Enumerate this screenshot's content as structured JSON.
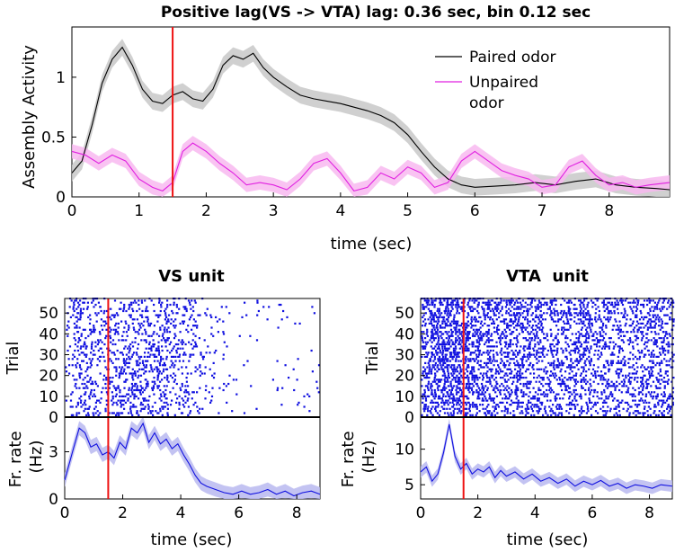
{
  "chart_data": [
    {
      "type": "line",
      "title": "Positive lag(VS -> VTA) lag: 0.36 sec, bin 0.12 sec",
      "xlabel": "time (sec)",
      "ylabel": "Assembly Activity",
      "xlim": [
        0,
        8.9
      ],
      "ylim": [
        0,
        1.42
      ],
      "xticks": [
        "0",
        "1",
        "2",
        "3",
        "4",
        "5",
        "6",
        "7",
        "8"
      ],
      "yticks": [
        "0",
        "0.5",
        "1"
      ],
      "legend_position": "top-right",
      "event_line": 1.5,
      "series": [
        {
          "name": "Paired odor",
          "color": "#000000",
          "band_color": "#c8c8c8",
          "x": [
            0,
            0.15,
            0.3,
            0.45,
            0.6,
            0.75,
            0.9,
            1.05,
            1.2,
            1.35,
            1.5,
            1.65,
            1.8,
            1.95,
            2.1,
            2.25,
            2.4,
            2.55,
            2.7,
            2.85,
            3.0,
            3.2,
            3.4,
            3.6,
            3.8,
            4.0,
            4.2,
            4.4,
            4.6,
            4.8,
            5.0,
            5.2,
            5.4,
            5.6,
            5.8,
            6.0,
            6.3,
            6.6,
            6.9,
            7.2,
            7.5,
            7.8,
            8.1,
            8.4,
            8.7,
            8.9
          ],
          "y": [
            0.2,
            0.3,
            0.6,
            0.95,
            1.15,
            1.25,
            1.1,
            0.9,
            0.8,
            0.78,
            0.85,
            0.88,
            0.82,
            0.8,
            0.9,
            1.1,
            1.18,
            1.15,
            1.2,
            1.08,
            1.0,
            0.92,
            0.85,
            0.82,
            0.8,
            0.78,
            0.75,
            0.72,
            0.68,
            0.62,
            0.52,
            0.38,
            0.25,
            0.15,
            0.1,
            0.08,
            0.09,
            0.1,
            0.12,
            0.1,
            0.13,
            0.15,
            0.1,
            0.08,
            0.07,
            0.06
          ],
          "err": 0.07
        },
        {
          "name": "Unpaired odor",
          "color": "#e020e0",
          "band_color": "#f8b8f0",
          "x": [
            0,
            0.2,
            0.4,
            0.6,
            0.8,
            1.0,
            1.2,
            1.35,
            1.5,
            1.65,
            1.8,
            2.0,
            2.2,
            2.4,
            2.6,
            2.8,
            3.0,
            3.2,
            3.4,
            3.6,
            3.8,
            4.0,
            4.2,
            4.4,
            4.6,
            4.8,
            5.0,
            5.2,
            5.4,
            5.6,
            5.8,
            6.0,
            6.2,
            6.4,
            6.6,
            6.8,
            7.0,
            7.2,
            7.4,
            7.6,
            7.8,
            8.0,
            8.2,
            8.4,
            8.6,
            8.9
          ],
          "y": [
            0.38,
            0.35,
            0.28,
            0.35,
            0.3,
            0.15,
            0.08,
            0.05,
            0.12,
            0.38,
            0.45,
            0.38,
            0.28,
            0.2,
            0.1,
            0.12,
            0.1,
            0.06,
            0.15,
            0.28,
            0.32,
            0.2,
            0.05,
            0.08,
            0.2,
            0.15,
            0.25,
            0.2,
            0.08,
            0.12,
            0.3,
            0.38,
            0.3,
            0.22,
            0.18,
            0.15,
            0.08,
            0.1,
            0.25,
            0.3,
            0.18,
            0.1,
            0.12,
            0.08,
            0.1,
            0.12
          ],
          "err": 0.06
        }
      ]
    },
    {
      "type": "scatter",
      "subtype": "raster",
      "title": "VS unit",
      "ylabel": "Trial",
      "xlim": [
        0,
        8.8
      ],
      "ylim": [
        0,
        57
      ],
      "yticks": [
        "0",
        "10",
        "20",
        "30",
        "40",
        "50"
      ],
      "event_line": 1.5,
      "color": "#1010e0",
      "trials": 57,
      "rate_profile_x": [
        0,
        0.5,
        1,
        1.5,
        2,
        2.5,
        3,
        3.5,
        4,
        4.5,
        5,
        5.5,
        6,
        6.5,
        7,
        7.5,
        8,
        8.8
      ],
      "rate_profile_y": [
        2,
        4.5,
        3.5,
        3,
        4.5,
        4.5,
        4,
        3.8,
        3.5,
        2.2,
        0.8,
        0.5,
        0.4,
        0.4,
        0.5,
        0.4,
        0.3,
        0.4
      ]
    },
    {
      "type": "line",
      "xlabel": "time (sec)",
      "ylabel": "Fr. rate (Hz)",
      "xlim": [
        0,
        8.8
      ],
      "ylim": [
        0,
        5.2
      ],
      "xticks": [
        "0",
        "2",
        "4",
        "6",
        "8"
      ],
      "yticks": [
        "0",
        "3"
      ],
      "event_line": 1.5,
      "series": [
        {
          "color": "#1010e0",
          "band_color": "#b8b8f0",
          "x": [
            0,
            0.3,
            0.5,
            0.7,
            0.9,
            1.1,
            1.3,
            1.5,
            1.7,
            1.9,
            2.1,
            2.3,
            2.5,
            2.7,
            2.9,
            3.1,
            3.3,
            3.5,
            3.7,
            3.9,
            4.1,
            4.3,
            4.5,
            4.7,
            4.9,
            5.2,
            5.5,
            5.8,
            6.1,
            6.4,
            6.7,
            7.0,
            7.3,
            7.6,
            7.9,
            8.2,
            8.5,
            8.8
          ],
          "y": [
            1.2,
            3.2,
            4.5,
            4.2,
            3.3,
            3.5,
            2.8,
            3.0,
            2.6,
            3.6,
            3.2,
            4.5,
            4.2,
            4.8,
            3.6,
            4.2,
            3.5,
            3.8,
            3.2,
            3.5,
            2.8,
            2.2,
            1.5,
            1.0,
            0.8,
            0.6,
            0.4,
            0.3,
            0.5,
            0.3,
            0.4,
            0.6,
            0.3,
            0.5,
            0.2,
            0.4,
            0.5,
            0.3
          ],
          "err": 0.45
        }
      ]
    },
    {
      "type": "scatter",
      "subtype": "raster",
      "title": "VTA  unit",
      "ylabel": "Trial",
      "xlim": [
        0,
        8.8
      ],
      "ylim": [
        0,
        57
      ],
      "yticks": [
        "0",
        "10",
        "20",
        "30",
        "40",
        "50"
      ],
      "event_line": 1.5,
      "color": "#1010e0",
      "trials": 57,
      "rate_profile_x": [
        0,
        1,
        1.5,
        2,
        3,
        4,
        5,
        6,
        7,
        8,
        8.8
      ],
      "rate_profile_y": [
        7,
        9,
        8,
        7,
        6.5,
        6,
        5.5,
        5,
        5,
        5,
        5
      ]
    },
    {
      "type": "line",
      "xlabel": "time (sec)",
      "ylabel": "Fr. rate (Hz)",
      "xlim": [
        0,
        8.8
      ],
      "ylim": [
        3,
        14.5
      ],
      "xticks": [
        "0",
        "2",
        "4",
        "6",
        "8"
      ],
      "yticks": [
        "5",
        "10"
      ],
      "event_line": 1.5,
      "series": [
        {
          "color": "#1010e0",
          "band_color": "#b8b8f0",
          "x": [
            0,
            0.2,
            0.4,
            0.6,
            0.8,
            1.0,
            1.2,
            1.4,
            1.6,
            1.8,
            2.0,
            2.2,
            2.4,
            2.6,
            2.8,
            3.0,
            3.3,
            3.6,
            3.9,
            4.2,
            4.5,
            4.8,
            5.1,
            5.4,
            5.7,
            6.0,
            6.3,
            6.6,
            6.9,
            7.2,
            7.5,
            7.8,
            8.1,
            8.4,
            8.8
          ],
          "y": [
            6.8,
            7.5,
            5.5,
            6.5,
            9.5,
            13.5,
            9.0,
            7.2,
            8.0,
            6.5,
            7.2,
            6.8,
            7.5,
            6.0,
            7.0,
            6.2,
            6.8,
            5.8,
            6.5,
            5.5,
            6.0,
            5.2,
            5.8,
            4.8,
            5.5,
            5.0,
            5.6,
            4.8,
            5.2,
            4.5,
            5.0,
            4.8,
            4.5,
            5.0,
            4.8
          ],
          "err": 0.8
        }
      ]
    }
  ]
}
